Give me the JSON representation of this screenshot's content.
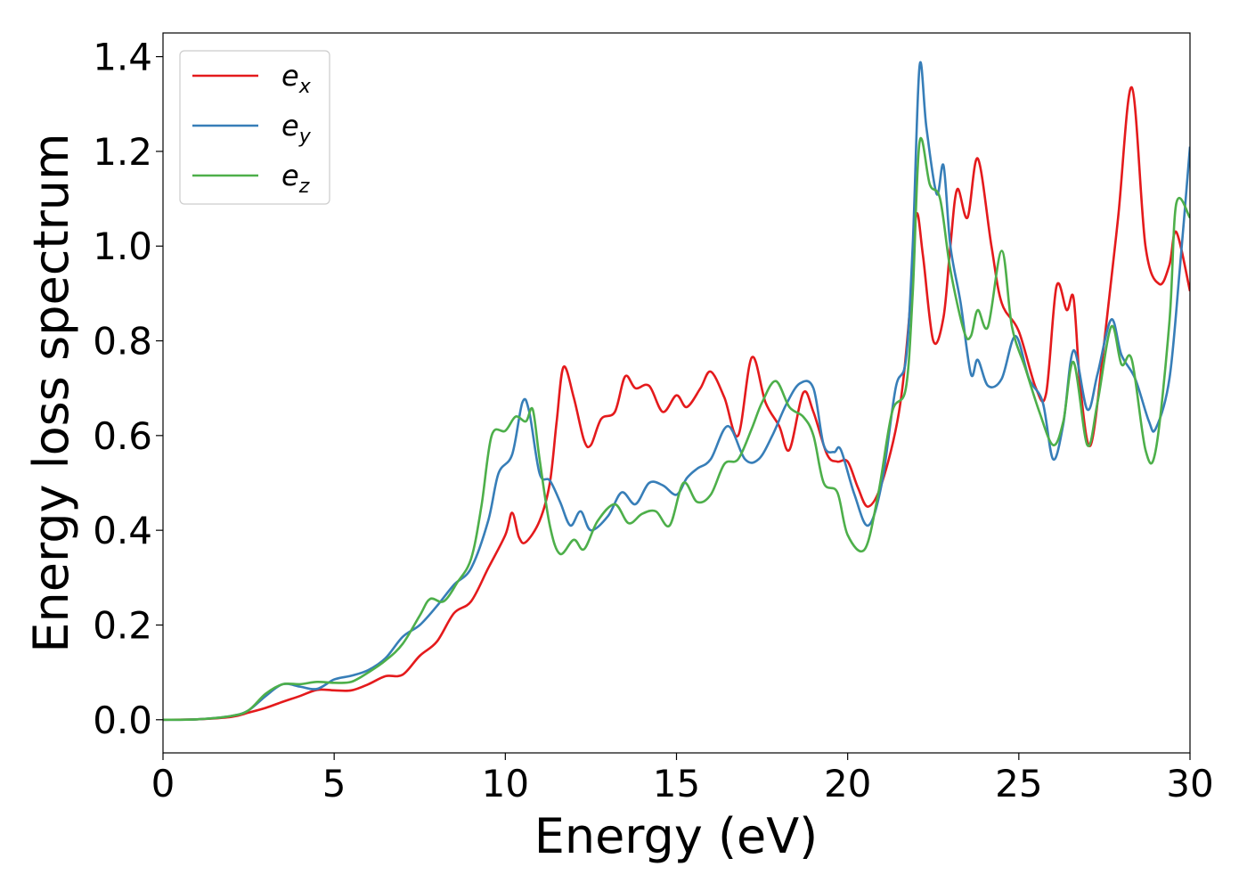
{
  "chart_data": {
    "type": "line",
    "xlabel": "Energy (eV)",
    "ylabel": "Energy loss spectrum",
    "xlim": [
      0,
      30
    ],
    "ylim": [
      -0.07,
      1.45
    ],
    "xticks": [
      0,
      5,
      10,
      15,
      20,
      25,
      30
    ],
    "xtick_labels": [
      "0",
      "5",
      "10",
      "15",
      "20",
      "25",
      "30"
    ],
    "yticks": [
      0.0,
      0.2,
      0.4,
      0.6,
      0.8,
      1.0,
      1.2,
      1.4
    ],
    "ytick_labels": [
      "0.0",
      "0.2",
      "0.4",
      "0.6",
      "0.8",
      "1.0",
      "1.2",
      "1.4"
    ],
    "grid": false,
    "legend_position": "top-left",
    "series": [
      {
        "name": "e_x",
        "label_base": "e",
        "label_sub": "x",
        "color": "#e41a1c",
        "points": [
          [
            0,
            0
          ],
          [
            1,
            0.001
          ],
          [
            2,
            0.006
          ],
          [
            2.5,
            0.015
          ],
          [
            3,
            0.025
          ],
          [
            3.5,
            0.038
          ],
          [
            4,
            0.05
          ],
          [
            4.5,
            0.063
          ],
          [
            5,
            0.062
          ],
          [
            5.5,
            0.062
          ],
          [
            6,
            0.075
          ],
          [
            6.5,
            0.092
          ],
          [
            7,
            0.095
          ],
          [
            7.5,
            0.135
          ],
          [
            8,
            0.165
          ],
          [
            8.5,
            0.225
          ],
          [
            9,
            0.25
          ],
          [
            9.5,
            0.32
          ],
          [
            10,
            0.39
          ],
          [
            10.2,
            0.437
          ],
          [
            10.4,
            0.385
          ],
          [
            10.6,
            0.375
          ],
          [
            11,
            0.42
          ],
          [
            11.3,
            0.5
          ],
          [
            11.5,
            0.63
          ],
          [
            11.7,
            0.745
          ],
          [
            12,
            0.68
          ],
          [
            12.3,
            0.59
          ],
          [
            12.5,
            0.58
          ],
          [
            12.8,
            0.635
          ],
          [
            13.2,
            0.65
          ],
          [
            13.5,
            0.725
          ],
          [
            13.8,
            0.7
          ],
          [
            14.2,
            0.705
          ],
          [
            14.6,
            0.65
          ],
          [
            15,
            0.685
          ],
          [
            15.3,
            0.66
          ],
          [
            15.7,
            0.7
          ],
          [
            16,
            0.735
          ],
          [
            16.4,
            0.68
          ],
          [
            16.8,
            0.6
          ],
          [
            17.2,
            0.765
          ],
          [
            17.6,
            0.67
          ],
          [
            18,
            0.62
          ],
          [
            18.3,
            0.57
          ],
          [
            18.7,
            0.69
          ],
          [
            19,
            0.65
          ],
          [
            19.4,
            0.56
          ],
          [
            19.7,
            0.545
          ],
          [
            20,
            0.545
          ],
          [
            20.3,
            0.49
          ],
          [
            20.6,
            0.45
          ],
          [
            21,
            0.5
          ],
          [
            21.5,
            0.65
          ],
          [
            21.8,
            0.85
          ],
          [
            22,
            1.065
          ],
          [
            22.2,
            0.98
          ],
          [
            22.5,
            0.8
          ],
          [
            22.8,
            0.85
          ],
          [
            23,
            1.0
          ],
          [
            23.2,
            1.12
          ],
          [
            23.5,
            1.06
          ],
          [
            23.8,
            1.185
          ],
          [
            24.2,
            1.0
          ],
          [
            24.5,
            0.88
          ],
          [
            25,
            0.82
          ],
          [
            25.5,
            0.7
          ],
          [
            25.8,
            0.69
          ],
          [
            26.1,
            0.915
          ],
          [
            26.4,
            0.865
          ],
          [
            26.6,
            0.89
          ],
          [
            26.8,
            0.7
          ],
          [
            27.1,
            0.58
          ],
          [
            27.5,
            0.8
          ],
          [
            27.9,
            1.06
          ],
          [
            28.3,
            1.335
          ],
          [
            28.7,
            1.0
          ],
          [
            29.1,
            0.92
          ],
          [
            29.4,
            0.96
          ],
          [
            29.6,
            1.03
          ],
          [
            30,
            0.905
          ]
        ]
      },
      {
        "name": "e_y",
        "label_base": "e",
        "label_sub": "y",
        "color": "#377eb8",
        "points": [
          [
            0,
            0
          ],
          [
            1,
            0.001
          ],
          [
            2,
            0.008
          ],
          [
            2.5,
            0.02
          ],
          [
            3,
            0.05
          ],
          [
            3.5,
            0.075
          ],
          [
            4,
            0.07
          ],
          [
            4.5,
            0.065
          ],
          [
            5,
            0.085
          ],
          [
            5.5,
            0.093
          ],
          [
            6,
            0.105
          ],
          [
            6.5,
            0.13
          ],
          [
            7,
            0.175
          ],
          [
            7.5,
            0.2
          ],
          [
            8,
            0.24
          ],
          [
            8.5,
            0.285
          ],
          [
            9,
            0.32
          ],
          [
            9.5,
            0.42
          ],
          [
            9.8,
            0.52
          ],
          [
            10.2,
            0.56
          ],
          [
            10.5,
            0.67
          ],
          [
            10.7,
            0.65
          ],
          [
            11,
            0.52
          ],
          [
            11.3,
            0.505
          ],
          [
            11.6,
            0.46
          ],
          [
            11.9,
            0.41
          ],
          [
            12.2,
            0.44
          ],
          [
            12.5,
            0.4
          ],
          [
            13,
            0.43
          ],
          [
            13.4,
            0.48
          ],
          [
            13.8,
            0.455
          ],
          [
            14.2,
            0.5
          ],
          [
            14.6,
            0.495
          ],
          [
            15,
            0.475
          ],
          [
            15.3,
            0.51
          ],
          [
            15.6,
            0.53
          ],
          [
            16,
            0.55
          ],
          [
            16.5,
            0.62
          ],
          [
            17,
            0.55
          ],
          [
            17.4,
            0.55
          ],
          [
            17.8,
            0.6
          ],
          [
            18.2,
            0.665
          ],
          [
            18.6,
            0.71
          ],
          [
            19,
            0.7
          ],
          [
            19.3,
            0.58
          ],
          [
            19.6,
            0.565
          ],
          [
            19.8,
            0.57
          ],
          [
            20.2,
            0.475
          ],
          [
            20.6,
            0.41
          ],
          [
            21,
            0.5
          ],
          [
            21.4,
            0.7
          ],
          [
            21.7,
            0.76
          ],
          [
            21.9,
            1.0
          ],
          [
            22.1,
            1.38
          ],
          [
            22.3,
            1.25
          ],
          [
            22.6,
            1.11
          ],
          [
            22.8,
            1.17
          ],
          [
            23,
            1.0
          ],
          [
            23.3,
            0.88
          ],
          [
            23.6,
            0.73
          ],
          [
            23.8,
            0.76
          ],
          [
            24.1,
            0.705
          ],
          [
            24.5,
            0.72
          ],
          [
            24.9,
            0.81
          ],
          [
            25.3,
            0.72
          ],
          [
            25.7,
            0.67
          ],
          [
            26,
            0.55
          ],
          [
            26.3,
            0.625
          ],
          [
            26.6,
            0.78
          ],
          [
            27,
            0.655
          ],
          [
            27.3,
            0.73
          ],
          [
            27.7,
            0.845
          ],
          [
            28,
            0.77
          ],
          [
            28.4,
            0.72
          ],
          [
            28.8,
            0.63
          ],
          [
            29,
            0.615
          ],
          [
            29.4,
            0.72
          ],
          [
            29.7,
            0.95
          ],
          [
            30,
            1.21
          ]
        ]
      },
      {
        "name": "e_z",
        "label_base": "e",
        "label_sub": "z",
        "color": "#4daf4a",
        "points": [
          [
            0,
            0
          ],
          [
            1,
            0.001
          ],
          [
            2,
            0.008
          ],
          [
            2.5,
            0.02
          ],
          [
            3,
            0.055
          ],
          [
            3.5,
            0.075
          ],
          [
            4,
            0.075
          ],
          [
            4.5,
            0.08
          ],
          [
            5,
            0.078
          ],
          [
            5.5,
            0.08
          ],
          [
            6,
            0.1
          ],
          [
            6.5,
            0.125
          ],
          [
            7,
            0.16
          ],
          [
            7.5,
            0.22
          ],
          [
            7.8,
            0.255
          ],
          [
            8.2,
            0.25
          ],
          [
            8.6,
            0.29
          ],
          [
            9,
            0.34
          ],
          [
            9.3,
            0.45
          ],
          [
            9.6,
            0.6
          ],
          [
            10,
            0.61
          ],
          [
            10.3,
            0.64
          ],
          [
            10.6,
            0.63
          ],
          [
            10.8,
            0.655
          ],
          [
            11,
            0.55
          ],
          [
            11.3,
            0.41
          ],
          [
            11.6,
            0.35
          ],
          [
            12,
            0.38
          ],
          [
            12.3,
            0.36
          ],
          [
            12.7,
            0.42
          ],
          [
            13.2,
            0.455
          ],
          [
            13.6,
            0.415
          ],
          [
            14,
            0.435
          ],
          [
            14.4,
            0.44
          ],
          [
            14.8,
            0.41
          ],
          [
            15.2,
            0.5
          ],
          [
            15.6,
            0.46
          ],
          [
            16,
            0.475
          ],
          [
            16.4,
            0.54
          ],
          [
            16.8,
            0.55
          ],
          [
            17.2,
            0.615
          ],
          [
            17.5,
            0.67
          ],
          [
            17.9,
            0.715
          ],
          [
            18.3,
            0.66
          ],
          [
            18.7,
            0.64
          ],
          [
            19,
            0.6
          ],
          [
            19.3,
            0.5
          ],
          [
            19.7,
            0.48
          ],
          [
            20,
            0.39
          ],
          [
            20.5,
            0.36
          ],
          [
            20.9,
            0.48
          ],
          [
            21.3,
            0.65
          ],
          [
            21.7,
            0.7
          ],
          [
            21.9,
            0.9
          ],
          [
            22.1,
            1.22
          ],
          [
            22.4,
            1.13
          ],
          [
            22.7,
            1.1
          ],
          [
            23,
            0.95
          ],
          [
            23.4,
            0.82
          ],
          [
            23.6,
            0.81
          ],
          [
            23.8,
            0.865
          ],
          [
            24.1,
            0.83
          ],
          [
            24.5,
            0.99
          ],
          [
            24.8,
            0.83
          ],
          [
            25.2,
            0.74
          ],
          [
            25.6,
            0.65
          ],
          [
            26,
            0.58
          ],
          [
            26.3,
            0.63
          ],
          [
            26.6,
            0.755
          ],
          [
            27,
            0.58
          ],
          [
            27.3,
            0.67
          ],
          [
            27.7,
            0.83
          ],
          [
            28,
            0.75
          ],
          [
            28.3,
            0.76
          ],
          [
            28.7,
            0.57
          ],
          [
            29,
            0.57
          ],
          [
            29.4,
            0.84
          ],
          [
            29.6,
            1.09
          ],
          [
            30,
            1.06
          ]
        ]
      }
    ]
  }
}
